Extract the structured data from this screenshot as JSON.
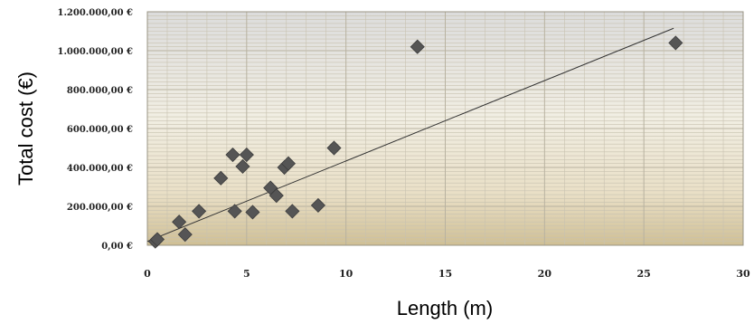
{
  "chart_data": {
    "type": "scatter",
    "xlabel": "Length (m)",
    "ylabel": "Total cost (€)",
    "xlim": [
      0,
      30
    ],
    "ylim": [
      0,
      1200000
    ],
    "x_ticks": [
      "0",
      "5",
      "10",
      "15",
      "20",
      "25",
      "30"
    ],
    "y_ticks": [
      "0,00 €",
      "200.000,00 €",
      "400.000,00 €",
      "600.000,00 €",
      "800.000,00 €",
      "1.000.000,00 €",
      "1.200.000,00 €"
    ],
    "grid": true,
    "legend": "none",
    "series": [
      {
        "points": [
          {
            "x": 0.4,
            "y": 20000
          },
          {
            "x": 0.5,
            "y": 30000
          },
          {
            "x": 1.6,
            "y": 120000
          },
          {
            "x": 1.9,
            "y": 55000
          },
          {
            "x": 2.6,
            "y": 175000
          },
          {
            "x": 3.7,
            "y": 345000
          },
          {
            "x": 4.3,
            "y": 465000
          },
          {
            "x": 4.4,
            "y": 175000
          },
          {
            "x": 4.8,
            "y": 405000
          },
          {
            "x": 5.0,
            "y": 465000
          },
          {
            "x": 5.3,
            "y": 170000
          },
          {
            "x": 6.2,
            "y": 295000
          },
          {
            "x": 6.5,
            "y": 255000
          },
          {
            "x": 6.9,
            "y": 400000
          },
          {
            "x": 7.1,
            "y": 420000
          },
          {
            "x": 7.3,
            "y": 175000
          },
          {
            "x": 8.6,
            "y": 205000
          },
          {
            "x": 9.4,
            "y": 500000
          },
          {
            "x": 13.6,
            "y": 1020000
          },
          {
            "x": 26.6,
            "y": 1040000
          }
        ]
      }
    ],
    "trendline": {
      "x": [
        0,
        26.5
      ],
      "y": [
        20000,
        1115000
      ]
    },
    "colors": {
      "marker": "#555555",
      "trendline": "#333333",
      "grid": "#c8c2b0"
    }
  }
}
